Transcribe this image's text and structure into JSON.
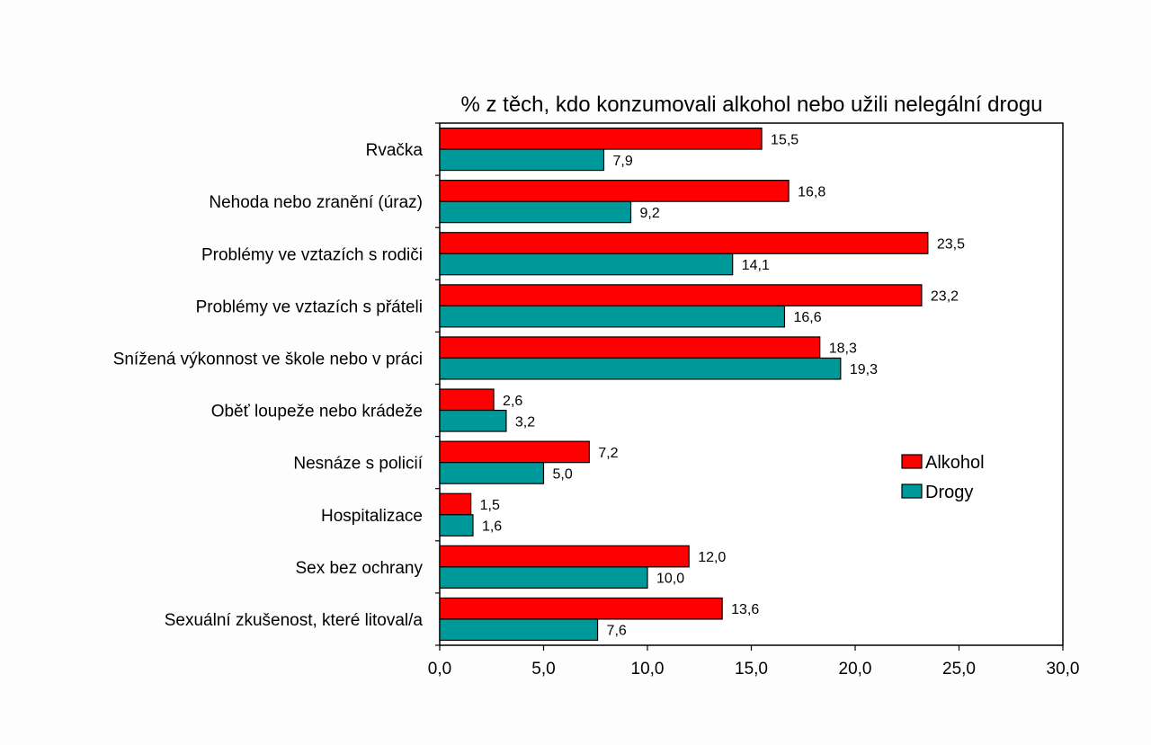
{
  "chart_data": {
    "type": "bar",
    "orientation": "horizontal",
    "title": "% z těch, kdo konzumovali alkohol nebo užili nelegální drogu",
    "categories": [
      "Rvačka",
      "Nehoda nebo zranění (úraz)",
      "Problémy ve vztazích s rodiči",
      "Problémy ve vztazích s přáteli",
      "Snížená výkonnost ve škole nebo v práci",
      "Oběť loupeže nebo krádeže",
      "Nesnáze s policií",
      "Hospitalizace",
      "Sex bez ochrany",
      "Sexuální zkušenost, které litoval/a"
    ],
    "series": [
      {
        "name": "Alkohol",
        "color": "#ff0000",
        "values": [
          15.5,
          16.8,
          23.5,
          23.2,
          18.3,
          2.6,
          7.2,
          1.5,
          12.0,
          13.6
        ],
        "labels": [
          "15,5",
          "16,8",
          "23,5",
          "23,2",
          "18,3",
          "2,6",
          "7,2",
          "1,5",
          "12,0",
          "13,6"
        ]
      },
      {
        "name": "Drogy",
        "color": "#009999",
        "values": [
          7.9,
          9.2,
          14.1,
          16.6,
          19.3,
          3.2,
          5.0,
          1.6,
          10.0,
          7.6
        ],
        "labels": [
          "7,9",
          "9,2",
          "14,1",
          "16,6",
          "19,3",
          "3,2",
          "5,0",
          "1,6",
          "10,0",
          "7,6"
        ]
      }
    ],
    "xlim": [
      0,
      30
    ],
    "xticks": [
      0,
      5,
      10,
      15,
      20,
      25,
      30
    ],
    "xtick_labels": [
      "0,0",
      "5,0",
      "10,0",
      "15,0",
      "20,0",
      "25,0",
      "30,0"
    ],
    "xlabel": "",
    "ylabel": "",
    "grid": false,
    "legend_position": "right"
  }
}
